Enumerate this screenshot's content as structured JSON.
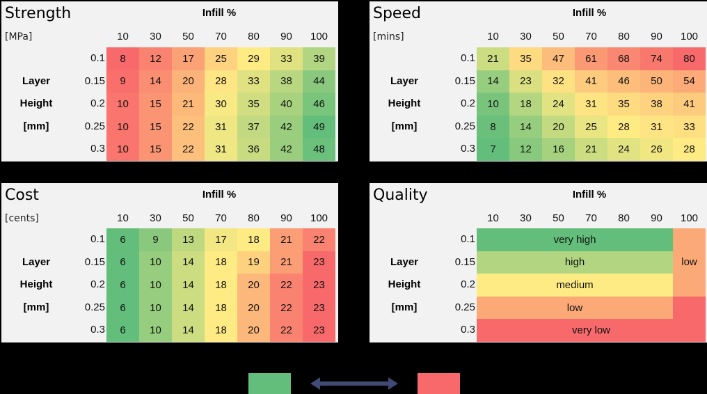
{
  "color_scale": {
    "low_end": "#F8696B",
    "mid": "#FFEB84",
    "high_end": "#63BE7B"
  },
  "quality_colors": {
    "very high": "#63BE7B",
    "high": "#B1D580",
    "medium": "#FFEB84",
    "low": "#FBAA77",
    "very low": "#F8696B"
  },
  "axis": {
    "infill_title": "Infill %",
    "row_axis_lines": [
      "Layer",
      "Height",
      "[mm]"
    ],
    "columns": [
      "10",
      "30",
      "50",
      "70",
      "80",
      "90",
      "100"
    ],
    "rows": [
      "0.1",
      "0.15",
      "0.2",
      "0.25",
      "0.3"
    ]
  },
  "panels": {
    "strength": {
      "title": "Strength",
      "unit": "[MPa]",
      "higher_is_better": true
    },
    "speed": {
      "title": "Speed",
      "unit": "[mins]",
      "higher_is_better": false
    },
    "cost": {
      "title": "Cost",
      "unit": "[cents]",
      "higher_is_better": false
    },
    "quality": {
      "title": "Quality",
      "unit": ""
    }
  },
  "legend": {
    "good_color": "#63BE7B",
    "bad_color": "#F8696B",
    "arrow_color": "#3F4A75"
  },
  "chart_data": [
    {
      "type": "heatmap",
      "title": "Strength",
      "unit": "[MPa]",
      "xlabel": "Infill %",
      "ylabel": "Layer Height [mm]",
      "x": [
        "10",
        "30",
        "50",
        "70",
        "80",
        "90",
        "100"
      ],
      "y": [
        "0.1",
        "0.15",
        "0.2",
        "0.25",
        "0.3"
      ],
      "values": [
        [
          8,
          12,
          17,
          25,
          29,
          33,
          39
        ],
        [
          9,
          14,
          20,
          28,
          33,
          38,
          44
        ],
        [
          10,
          15,
          21,
          30,
          35,
          40,
          46
        ],
        [
          10,
          15,
          22,
          31,
          37,
          42,
          49
        ],
        [
          10,
          15,
          22,
          31,
          36,
          42,
          48
        ]
      ],
      "colormap": "red(low)-yellow-green(high)"
    },
    {
      "type": "heatmap",
      "title": "Speed",
      "unit": "[mins]",
      "xlabel": "Infill %",
      "ylabel": "Layer Height [mm]",
      "x": [
        "10",
        "30",
        "50",
        "70",
        "80",
        "90",
        "100"
      ],
      "y": [
        "0.1",
        "0.15",
        "0.2",
        "0.25",
        "0.3"
      ],
      "values": [
        [
          21,
          35,
          47,
          61,
          68,
          74,
          80
        ],
        [
          14,
          23,
          32,
          41,
          46,
          50,
          54
        ],
        [
          10,
          18,
          24,
          31,
          35,
          38,
          41
        ],
        [
          8,
          14,
          20,
          25,
          28,
          31,
          33
        ],
        [
          7,
          12,
          16,
          21,
          24,
          26,
          28
        ]
      ],
      "colormap": "green(low)-yellow-red(high)"
    },
    {
      "type": "heatmap",
      "title": "Cost",
      "unit": "[cents]",
      "xlabel": "Infill %",
      "ylabel": "Layer Height [mm]",
      "x": [
        "10",
        "30",
        "50",
        "70",
        "80",
        "90",
        "100"
      ],
      "y": [
        "0.1",
        "0.15",
        "0.2",
        "0.25",
        "0.3"
      ],
      "values": [
        [
          6,
          9,
          13,
          17,
          18,
          21,
          22
        ],
        [
          6,
          10,
          14,
          18,
          19,
          21,
          23
        ],
        [
          6,
          10,
          14,
          18,
          20,
          22,
          23
        ],
        [
          6,
          10,
          14,
          18,
          20,
          22,
          23
        ],
        [
          6,
          10,
          14,
          18,
          20,
          22,
          23
        ]
      ],
      "colormap": "green(low)-yellow-red(high)"
    },
    {
      "type": "table",
      "title": "Quality",
      "xlabel": "Infill %",
      "ylabel": "Layer Height [mm]",
      "x": [
        "10",
        "30",
        "50",
        "70",
        "80",
        "90",
        "100"
      ],
      "y": [
        "0.1",
        "0.15",
        "0.2",
        "0.25",
        "0.3"
      ],
      "values": [
        [
          "very high",
          "very high",
          "very high",
          "very high",
          "very high",
          "very high",
          "low"
        ],
        [
          "high",
          "high",
          "high",
          "high",
          "high",
          "high",
          "low"
        ],
        [
          "medium",
          "medium",
          "medium",
          "medium",
          "medium",
          "medium",
          "low"
        ],
        [
          "low",
          "low",
          "low",
          "low",
          "low",
          "low",
          "very low"
        ],
        [
          "very low",
          "very low",
          "very low",
          "very low",
          "very low",
          "very low",
          "very low"
        ]
      ],
      "merged_labels": [
        {
          "text": "very high",
          "row": 0,
          "col_start": 0,
          "col_end": 5,
          "row_span": 1
        },
        {
          "text": "high",
          "row": 1,
          "col_start": 0,
          "col_end": 5,
          "row_span": 1
        },
        {
          "text": "medium",
          "row": 2,
          "col_start": 0,
          "col_end": 5,
          "row_span": 1
        },
        {
          "text": "low",
          "row": 3,
          "col_start": 0,
          "col_end": 5,
          "row_span": 1
        },
        {
          "text": "very low",
          "row": 4,
          "col_start": 0,
          "col_end": 6,
          "row_span": 1
        },
        {
          "text": "low",
          "row": 0,
          "col_start": 6,
          "col_end": 6,
          "row_span": 3
        },
        {
          "text": "",
          "row": 3,
          "col_start": 6,
          "col_end": 6,
          "row_span": 1,
          "level": "very low"
        }
      ]
    }
  ]
}
